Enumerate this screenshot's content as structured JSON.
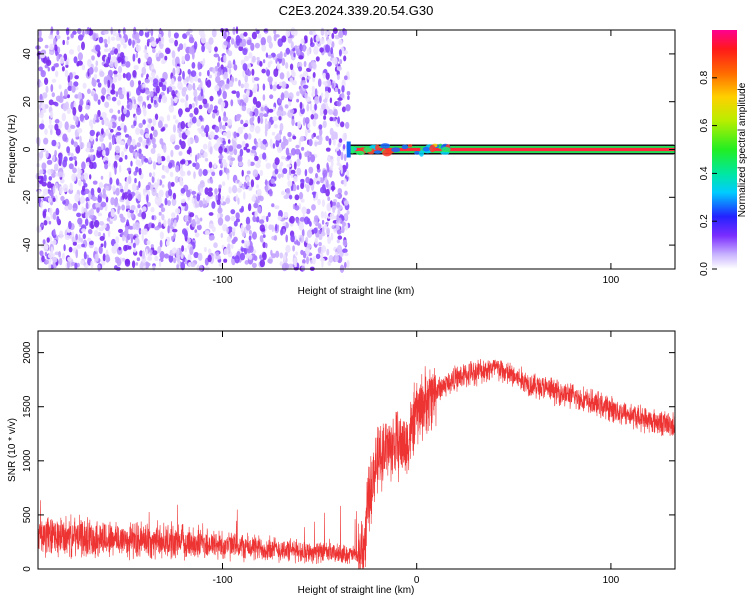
{
  "title": "C2E3.2024.339.20.54.G30",
  "chart_data": [
    {
      "type": "heatmap",
      "xlabel": "Height of straight line (km)",
      "ylabel": "Frequency (Hz)",
      "xlim": [
        -195,
        133
      ],
      "ylim": [
        -50,
        50
      ],
      "x_ticks": [
        -100,
        0,
        100
      ],
      "x_tick_labels": [
        "-100",
        "",
        "100"
      ],
      "y_ticks": [
        -40,
        -20,
        0,
        20,
        40
      ],
      "y_tick_labels": [
        "-40",
        "-20",
        "0",
        "20",
        "40"
      ],
      "noise_region_x": [
        -195,
        -35
      ],
      "signal": {
        "x_start": -35,
        "x_end": 133,
        "frequency": 0
      },
      "colorbar": {
        "label": "Normalized spectral amplitude",
        "range": [
          0,
          1
        ],
        "ticks": [
          0.0,
          0.2,
          0.4,
          0.6,
          0.8
        ],
        "tick_labels": [
          "0.0",
          "0.2",
          "0.4",
          "0.6",
          "0.8"
        ]
      },
      "grid": false
    },
    {
      "type": "line",
      "xlabel": "Height of straight line (km)",
      "ylabel": "SNR (10 * v/v)",
      "xlim": [
        -195,
        133
      ],
      "ylim": [
        0,
        2200
      ],
      "x_ticks": [
        -100,
        0,
        100
      ],
      "x_tick_labels": [
        "-100",
        "0",
        "100"
      ],
      "y_ticks": [
        0,
        500,
        1000,
        1500,
        2000
      ],
      "y_tick_labels": [
        "0",
        "500",
        "1000",
        "1500",
        "2000"
      ],
      "color": "#ee3333",
      "series": [
        {
          "x": [
            -195,
            -170,
            -150,
            -120,
            -100,
            -80,
            -60,
            -40,
            -30,
            -27,
            -25,
            -22,
            -18,
            -12,
            -5,
            0,
            10,
            20,
            30,
            40,
            50,
            60,
            80,
            100,
            120,
            133
          ],
          "values": [
            300,
            290,
            270,
            250,
            220,
            190,
            165,
            140,
            130,
            200,
            600,
            900,
            1080,
            1150,
            1150,
            1450,
            1650,
            1760,
            1820,
            1860,
            1780,
            1700,
            1600,
            1480,
            1370,
            1330
          ]
        }
      ],
      "grid": false
    }
  ]
}
